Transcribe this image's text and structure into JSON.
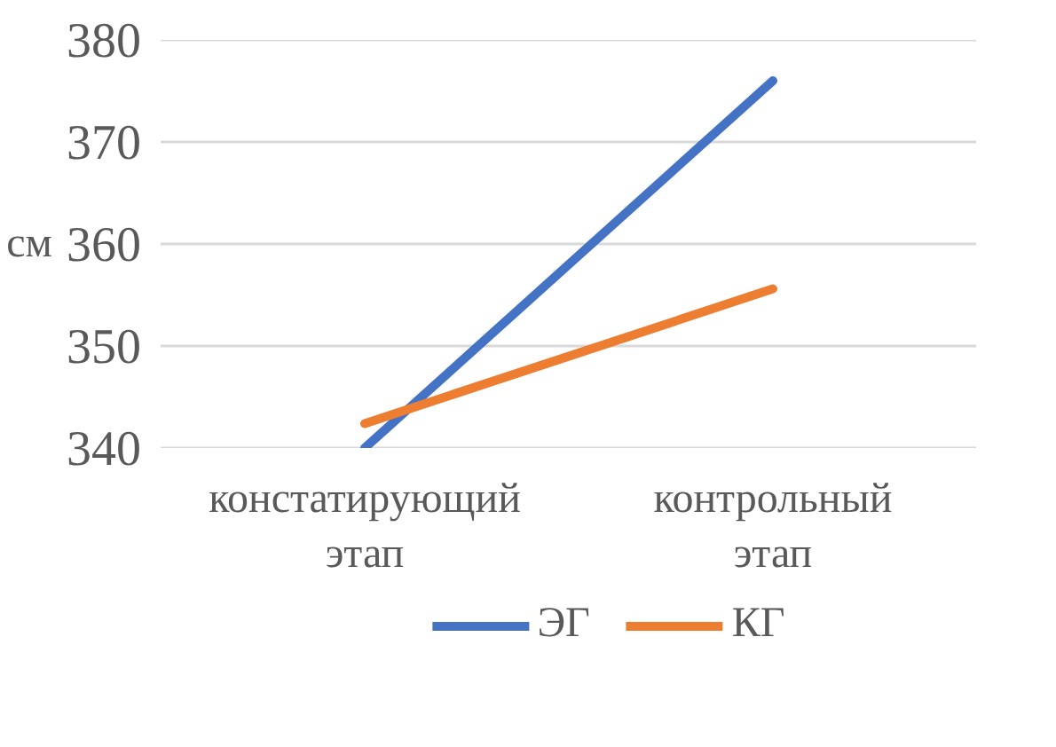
{
  "chart_data": {
    "type": "line",
    "ylabel": "см",
    "categories": [
      "констатирующий этап",
      "контрольный этап"
    ],
    "series": [
      {
        "name": "ЭГ",
        "color": "#4472c4",
        "values": [
          340,
          376
        ]
      },
      {
        "name": "КГ",
        "color": "#ed7d31",
        "values": [
          342.4,
          355.6
        ]
      }
    ],
    "ylim": [
      340,
      380
    ],
    "yticks": [
      340,
      350,
      360,
      370,
      380
    ],
    "grid": "y",
    "legend": "bottom",
    "marker": "none",
    "line_style": "solid"
  }
}
